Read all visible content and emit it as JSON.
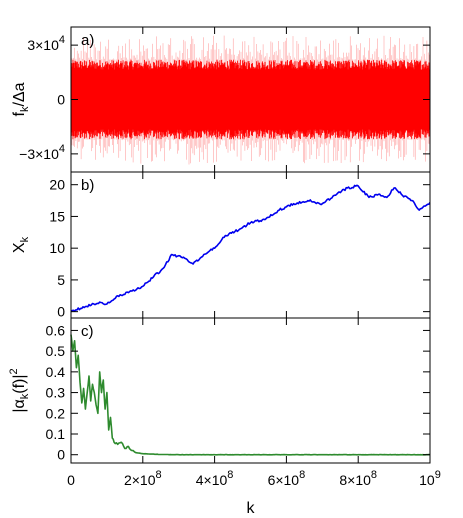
{
  "chart_data": [
    {
      "type": "line",
      "panel_label": "a)",
      "ylabel": "f_k/Δa",
      "xlim": [
        0,
        1000000000
      ],
      "ylim": [
        -40000,
        40000
      ],
      "yticks": [
        {
          "value": 30000,
          "mantissa": "3",
          "exp": "4"
        },
        {
          "value": 0,
          "text": "0"
        },
        {
          "value": -30000,
          "mantissa": "−3",
          "exp": "4"
        }
      ],
      "series": [
        {
          "color": "#ff0000",
          "style": "dense noise",
          "center": 0,
          "core_amplitude": 22000,
          "max_amplitude": 36000
        }
      ]
    },
    {
      "type": "line",
      "panel_label": "b)",
      "ylabel": "X_k",
      "xlim": [
        0,
        1000000000
      ],
      "ylim": [
        -1,
        22
      ],
      "yticks": [
        0,
        5,
        10,
        15,
        20
      ],
      "series": [
        {
          "color": "#0000ee",
          "x": [
            0,
            40000000,
            80000000,
            100000000,
            130000000,
            160000000,
            200000000,
            230000000,
            260000000,
            280000000,
            310000000,
            340000000,
            370000000,
            400000000,
            430000000,
            470000000,
            500000000,
            540000000,
            580000000,
            620000000,
            660000000,
            700000000,
            740000000,
            770000000,
            800000000,
            830000000,
            860000000,
            880000000,
            900000000,
            920000000,
            950000000,
            970000000,
            1000000000
          ],
          "y": [
            0,
            0.8,
            1.5,
            1.2,
            2.5,
            3.0,
            4.0,
            5.5,
            7.0,
            9.0,
            8.5,
            7.5,
            9.0,
            10.0,
            12.0,
            13.0,
            14.0,
            14.5,
            16.0,
            17.0,
            17.5,
            17.0,
            18.5,
            19.5,
            19.8,
            18.0,
            18.5,
            18.0,
            19.5,
            18.5,
            17.5,
            16.0,
            17.2
          ]
        }
      ]
    },
    {
      "type": "line",
      "panel_label": "c)",
      "ylabel": "|α_k(f)|²",
      "xlabel": "k",
      "xlim": [
        0,
        1000000000
      ],
      "ylim": [
        -0.04,
        0.66
      ],
      "yticks": [
        0,
        0.1,
        0.2,
        0.3,
        0.4,
        0.5,
        0.6
      ],
      "xticks": [
        {
          "value": 0,
          "text": "0"
        },
        {
          "value": 200000000,
          "mantissa": "2",
          "exp": "8"
        },
        {
          "value": 400000000,
          "mantissa": "4",
          "exp": "8"
        },
        {
          "value": 600000000,
          "mantissa": "6",
          "exp": "8"
        },
        {
          "value": 800000000,
          "mantissa": "8",
          "exp": "8"
        },
        {
          "value": 1000000000,
          "mantissa": "",
          "exp": "9"
        }
      ],
      "series": [
        {
          "color": "#2e8b2e",
          "x": [
            0,
            5000000,
            10000000,
            15000000,
            20000000,
            25000000,
            30000000,
            35000000,
            40000000,
            45000000,
            50000000,
            55000000,
            60000000,
            65000000,
            70000000,
            75000000,
            80000000,
            85000000,
            90000000,
            95000000,
            100000000,
            105000000,
            110000000,
            115000000,
            120000000,
            130000000,
            140000000,
            150000000,
            160000000,
            170000000,
            180000000,
            200000000,
            250000000,
            300000000,
            400000000,
            600000000,
            800000000,
            1000000000
          ],
          "y": [
            0.58,
            0.5,
            0.55,
            0.42,
            0.48,
            0.35,
            0.25,
            0.32,
            0.22,
            0.3,
            0.38,
            0.26,
            0.34,
            0.3,
            0.24,
            0.2,
            0.4,
            0.3,
            0.36,
            0.22,
            0.3,
            0.12,
            0.18,
            0.08,
            0.06,
            0.05,
            0.06,
            0.03,
            0.04,
            0.02,
            0.01,
            0.005,
            0.001,
            0.0,
            0.0,
            0.0,
            0.0,
            0.0
          ]
        }
      ]
    }
  ]
}
